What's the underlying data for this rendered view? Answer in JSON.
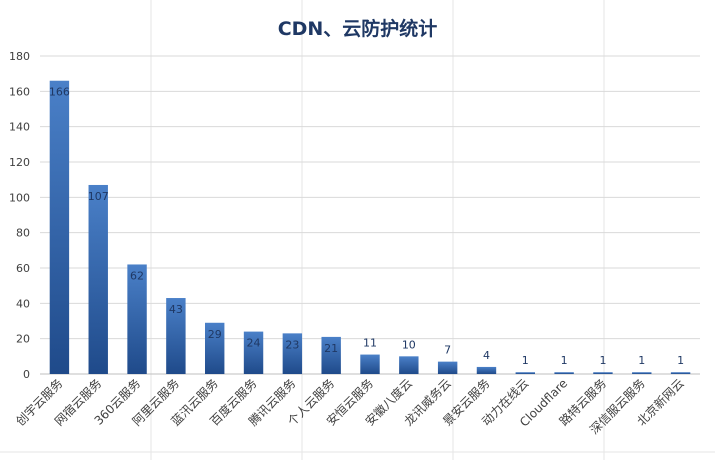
{
  "chart_data": {
    "type": "bar",
    "title": "CDN、云防护统计",
    "categories": [
      "创宇云服务",
      "网宿云服务",
      "360云服务",
      "阿里云服务",
      "蓝汛云服务",
      "百度云服务",
      "腾讯云服务",
      "个人云服务",
      "安恒云服务",
      "安徽八度云",
      "龙讯威务云",
      "景安云服务",
      "动力在线云",
      "Cloudflare",
      "路特云服务",
      "深信服云服务",
      "北京新网云"
    ],
    "values": [
      166,
      107,
      62,
      43,
      29,
      24,
      23,
      21,
      11,
      10,
      7,
      4,
      1,
      1,
      1,
      1,
      1
    ],
    "ylim": [
      0,
      180
    ],
    "yticks": [
      0,
      20,
      40,
      60,
      80,
      100,
      120,
      140,
      160,
      180
    ],
    "grid": true,
    "legend": "none",
    "colors": {
      "bar_top": "#4a80c8",
      "bar_bottom": "#1f4a8a",
      "title": "#1f3864",
      "label": "#1f3864",
      "grid": "#d9d9d9"
    }
  }
}
